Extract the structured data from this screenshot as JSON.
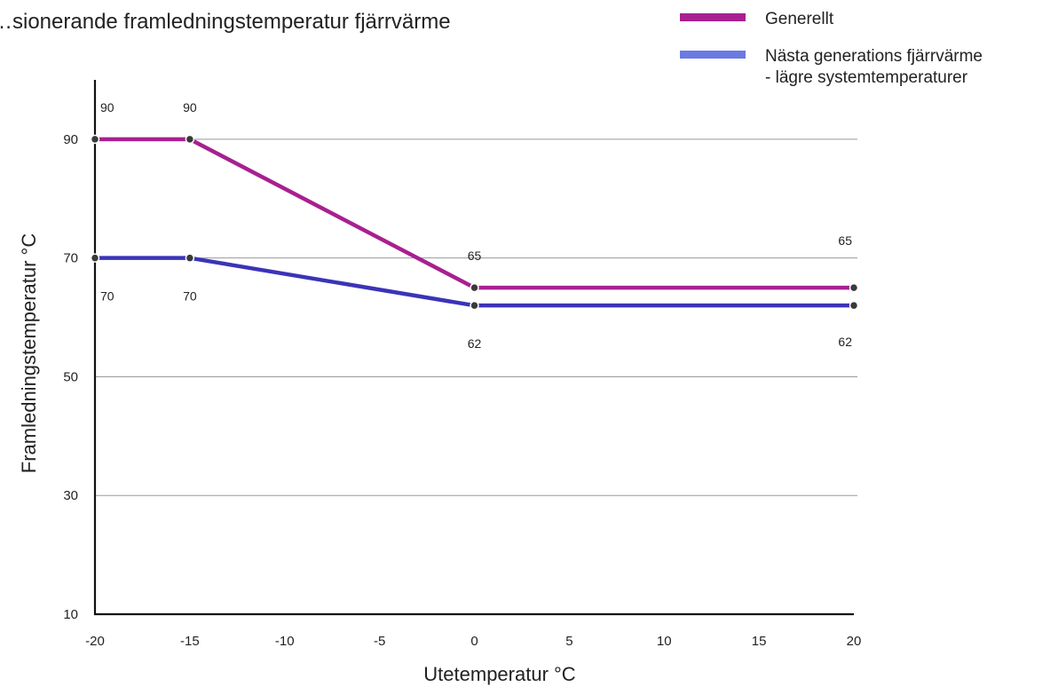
{
  "chart_data": {
    "type": "line",
    "title": "…sionerande framledningstemperatur fjärrvärme",
    "xlabel": "Utetemperatur °C",
    "ylabel": "Framledningstemperatur °C",
    "xlim": [
      -20,
      20
    ],
    "ylim": [
      10,
      100
    ],
    "xticks": [
      -20,
      -15,
      -10,
      -5,
      0,
      5,
      10,
      15,
      20
    ],
    "yticks": [
      10,
      30,
      50,
      70,
      90
    ],
    "grid_y": [
      30,
      50,
      70,
      90
    ],
    "legend_position": "top-right",
    "series": [
      {
        "name": "Generellt",
        "color": "#a8208f",
        "points": [
          {
            "x": -20,
            "y": 90,
            "label": "90"
          },
          {
            "x": -15,
            "y": 90,
            "label": "90"
          },
          {
            "x": 0,
            "y": 65,
            "label": "65"
          },
          {
            "x": 20,
            "y": 65,
            "label": "65"
          }
        ]
      },
      {
        "name": "Nästa generations fjärrvärme - lägre systemtemperaturer",
        "legend_lines": [
          "Nästa generations fjärrvärme",
          "- lägre systemtemperaturer"
        ],
        "color": "#3a34b8",
        "legend_color": "#6b7ae0",
        "points": [
          {
            "x": -20,
            "y": 70,
            "label": "70"
          },
          {
            "x": -15,
            "y": 70,
            "label": "70"
          },
          {
            "x": 0,
            "y": 62,
            "label": "62"
          },
          {
            "x": 20,
            "y": 62,
            "label": "62"
          }
        ]
      }
    ]
  }
}
